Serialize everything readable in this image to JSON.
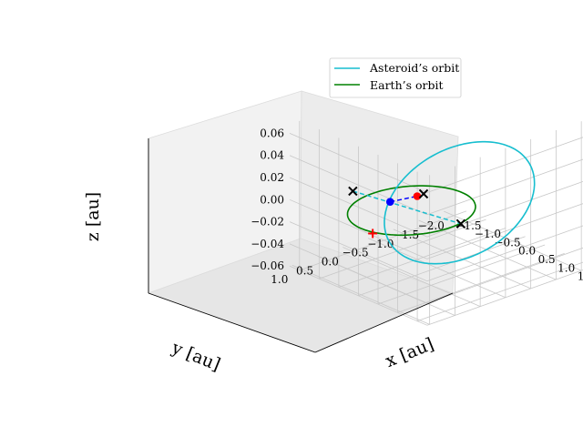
{
  "chart_data": {
    "type": "line3d",
    "title": "",
    "xlabel": "x [au]",
    "ylabel": "y [au]",
    "zlabel": "z [au]",
    "xlim": [
      -1.75,
      1.75
    ],
    "ylim": [
      -2.25,
      1.05
    ],
    "zlim": [
      -0.06,
      0.075
    ],
    "x_ticks": [
      "−1.5",
      "−1.0",
      "−0.5",
      "0.0",
      "0.5",
      "1.0",
      "1.5"
    ],
    "y_ticks": [
      "1.0",
      "0.5",
      "0.0",
      "−0.5",
      "−1.0",
      "−1.5",
      "−2.0"
    ],
    "z_ticks": [
      "0.06",
      "0.04",
      "0.02",
      "0.00",
      "−0.02",
      "−0.04",
      "−0.06"
    ],
    "grid": true,
    "legend_position": "upper-right",
    "series": [
      {
        "name": "Asteroid’s orbit",
        "color": "#17becf",
        "kind": "ellipse",
        "a": 1.2,
        "e": 0.4,
        "inclination_deg": 3.0,
        "node_deg": 160
      },
      {
        "name": "Earth’s orbit",
        "color": "#008000",
        "kind": "circle",
        "radius": 1.0
      }
    ],
    "markers": [
      {
        "label": "asteroid-position",
        "x": 0.55,
        "y": 0.85,
        "z": 0.03,
        "color": "#0000ff",
        "marker": "circle"
      },
      {
        "label": "asteroid-future",
        "x": -1.4,
        "y": -1.2,
        "z": -0.028,
        "color": "#ff0000",
        "marker": "circle"
      },
      {
        "label": "earth-position",
        "x": 0.3,
        "y": 1.0,
        "z": 0.0,
        "color": "#ff0000",
        "marker": "plus"
      },
      {
        "label": "node-ascending",
        "x": 1.0,
        "y": -0.2,
        "z": 0.0,
        "color": "#000000",
        "marker": "x"
      },
      {
        "label": "node-descending",
        "x": -1.3,
        "y": 0.15,
        "z": 0.0,
        "color": "#000000",
        "marker": "x"
      },
      {
        "label": "node-center",
        "x": -0.4,
        "y": -0.55,
        "z": 0.0,
        "color": "#000000",
        "marker": "x"
      }
    ]
  }
}
